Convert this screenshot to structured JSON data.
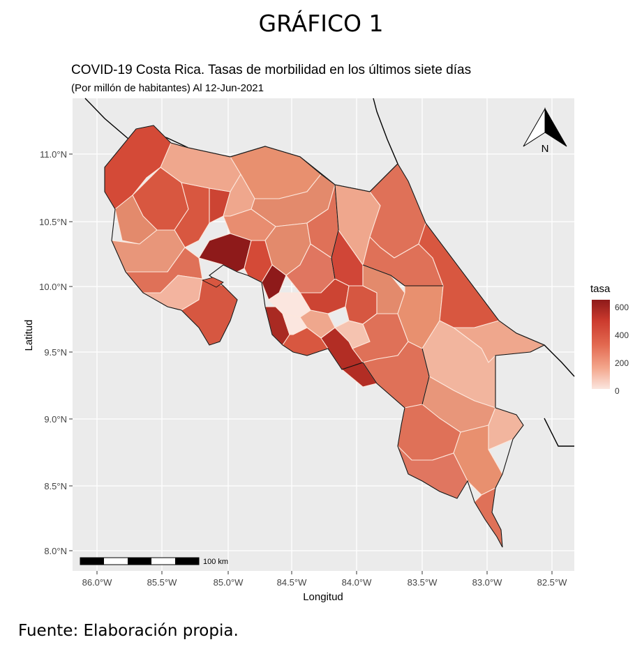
{
  "figure_heading": "GRÁFICO 1",
  "title": "COVID-19 Costa Rica. Tasas de morbilidad en los últimos siete días",
  "subtitle": "(Por millón de habitantes) Al 12-Jun-2021",
  "source": "Fuente: Elaboración propia.",
  "axes": {
    "xlabel": "Longitud",
    "ylabel": "Latitud",
    "x_ticks": [
      "86.0°W",
      "85.5°W",
      "85.0°W",
      "84.5°W",
      "84.0°W",
      "83.5°W",
      "83.0°W",
      "82.5°W"
    ],
    "y_ticks": [
      "11.0°N",
      "10.5°N",
      "10.0°N",
      "9.5°N",
      "9.0°N",
      "8.5°N",
      "8.0°N"
    ]
  },
  "legend": {
    "title": "tasa",
    "ticks": [
      "600",
      "400",
      "200",
      "0"
    ],
    "colors": {
      "high": "#8e1a1a",
      "mid": "#e2684f",
      "low": "#fbe6df"
    }
  },
  "scale_bar": "100 km",
  "north_arrow": "N",
  "panel_background": "#ebebeb"
}
